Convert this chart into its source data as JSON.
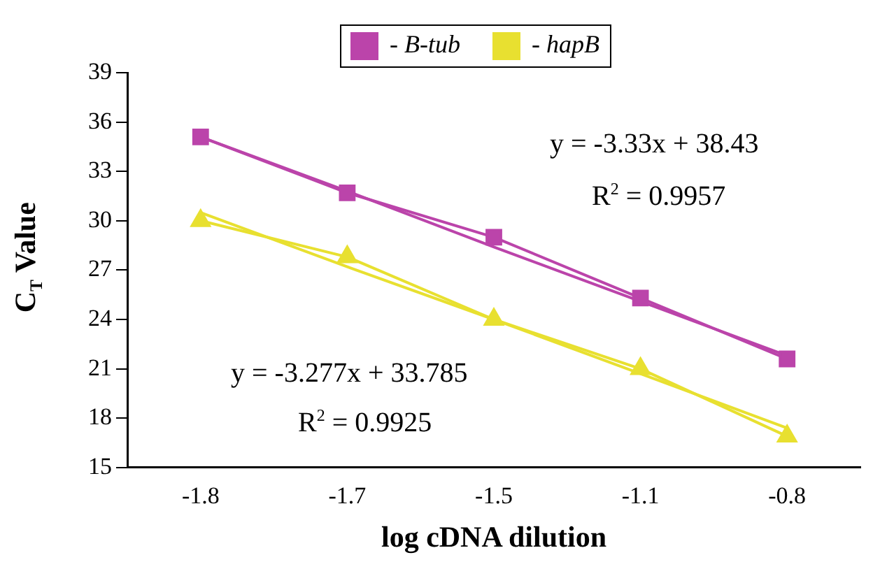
{
  "chart_data": {
    "type": "line",
    "xlabel": "log cDNA dilution",
    "ylabel": "C$_{T}$ Value",
    "categories": [
      "-1.8",
      "-1.7",
      "-1.5",
      "-1.1",
      "-0.8"
    ],
    "ylim": [
      15,
      39
    ],
    "yticks": [
      15,
      18,
      21,
      24,
      27,
      30,
      33,
      36,
      39
    ],
    "legend": "top",
    "series": [
      {
        "name": "- B-tub",
        "color": "#bb44aa",
        "marker": "square",
        "values": [
          35.1,
          31.7,
          29.0,
          25.3,
          21.6
        ]
      },
      {
        "name": "- hapB",
        "color": "#e8e030",
        "marker": "triangle",
        "values": [
          30.0,
          27.8,
          24.0,
          21.0,
          16.9
        ]
      },
      {
        "color": "#bb44aa",
        "marker": "none",
        "values": [
          35.1,
          31.8,
          28.4,
          25.1,
          21.8
        ]
      },
      {
        "color": "#e8e030",
        "marker": "none",
        "values": [
          30.5,
          27.2,
          24.0,
          20.7,
          17.4
        ]
      }
    ],
    "annotations": [
      "y = -3.33x + 38.43",
      "R$^{2}$ = 0.9957",
      "y = -3.277x + 33.785",
      "R$^{2}$ = 0.9925"
    ]
  }
}
